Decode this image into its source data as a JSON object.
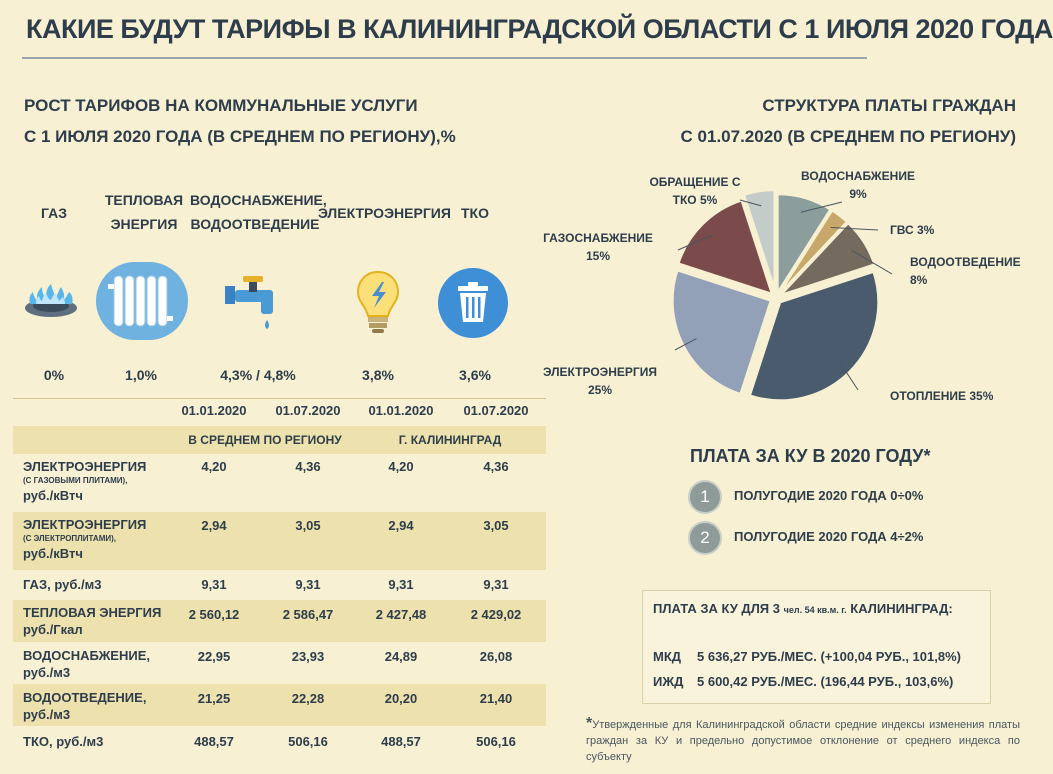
{
  "title": "КАКИЕ БУДУТ ТАРИФЫ В КАЛИНИНГРАДСКОЙ ОБЛАСТИ С 1 ИЮЛЯ 2020 ГОДА",
  "left_heading": {
    "line1": "РОСТ ТАРИФОВ НА КОММУНАЛЬНЫЕ УСЛУГИ",
    "line2": "С 1 ИЮЛЯ 2020 ГОДА (В СРЕДНЕМ ПО РЕГИОНУ),%"
  },
  "right_heading": {
    "line1": "СТРУКТУРА ПЛАТЫ ГРАЖДАН",
    "line2": "С 01.07.2020 (В СРЕДНЕМ ПО РЕГИОНУ)"
  },
  "services": [
    {
      "line1": "ГАЗ",
      "line2": "",
      "value": "0%",
      "icon": "gas-burner-icon"
    },
    {
      "line1": "ТЕПЛОВАЯ",
      "line2": "ЭНЕРГИЯ",
      "value": "1,0%",
      "icon": "radiator-icon"
    },
    {
      "line1": "ВОДОСНАБЖЕНИЕ,",
      "line2": "ВОДООТВЕДЕНИЕ",
      "value": "4,3% / 4,8%",
      "icon": "water-tap-icon"
    },
    {
      "line1": "ЭЛЕКТРОЭНЕРГИЯ",
      "line2": "",
      "value": "3,8%",
      "icon": "light-bulb-icon"
    },
    {
      "line1": "ТКО",
      "line2": "",
      "value": "3,6%",
      "icon": "trash-bin-icon"
    }
  ],
  "table": {
    "dates": [
      "01.01.2020",
      "01.07.2020",
      "01.01.2020",
      "01.07.2020"
    ],
    "groups": [
      "В СРЕДНЕМ ПО РЕГИОНУ",
      "Г. КАЛИНИНГРАД"
    ],
    "rows": [
      {
        "label": "ЭЛЕКТРОЭНЕРГИЯ",
        "note": "(С ГАЗОВЫМИ ПЛИТАМИ),",
        "unit": "руб./кВтч",
        "values": [
          "4,20",
          "4,36",
          "4,20",
          "4,36"
        ]
      },
      {
        "label": "ЭЛЕКТРОЭНЕРГИЯ",
        "note": "(С ЭЛЕКТРОПЛИТАМИ),",
        "unit": "руб./кВтч",
        "values": [
          "2,94",
          "3,05",
          "2,94",
          "3,05"
        ]
      },
      {
        "label": "ГАЗ,",
        "note": "",
        "unit": "руб./м3",
        "values": [
          "9,31",
          "9,31",
          "9,31",
          "9,31"
        ]
      },
      {
        "label": "ТЕПЛОВАЯ ЭНЕРГИЯ",
        "note": "",
        "unit": "руб./Гкал",
        "values": [
          "2 560,12",
          "2 586,47",
          "2 427,48",
          "2 429,02"
        ]
      },
      {
        "label": "ВОДОСНАБЖЕНИЕ,",
        "note": "",
        "unit": "руб./м3",
        "values": [
          "22,95",
          "23,93",
          "24,89",
          "26,08"
        ]
      },
      {
        "label": "ВОДООТВЕДЕНИЕ,",
        "note": "",
        "unit": "руб./м3",
        "values": [
          "21,25",
          "22,28",
          "20,20",
          "21,40"
        ]
      },
      {
        "label": "ТКО,",
        "note": "",
        "unit": "руб./м3",
        "values": [
          "488,57",
          "506,16",
          "488,57",
          "506,16"
        ]
      }
    ]
  },
  "chart_data": {
    "type": "pie",
    "title": "",
    "slices": [
      {
        "label_line1": "ВОДОСНАБЖЕНИЕ",
        "label_line2": "9%",
        "value": 9,
        "color": "#8b9e9c"
      },
      {
        "label_line1": "ГВС 3%",
        "label_line2": "",
        "value": 3,
        "color": "#c8a86a"
      },
      {
        "label_line1": "ВОДООТВЕДЕНИЕ",
        "label_line2": "8%",
        "value": 8,
        "color": "#756a5e"
      },
      {
        "label_line1": "ОТОПЛЕНИЕ 35%",
        "label_line2": "",
        "value": 35,
        "color": "#4a5b6e"
      },
      {
        "label_line1": "ЭЛЕКТРОЭНЕРГИЯ",
        "label_line2": "25%",
        "value": 25,
        "color": "#93a1b8"
      },
      {
        "label_line1": "ГАЗОСНАБЖЕНИЕ",
        "label_line2": "15%",
        "value": 15,
        "color": "#7b4b4b"
      },
      {
        "label_line1": "ОБРАЩЕНИЕ С",
        "label_line2": "ТКО 5%",
        "value": 5,
        "color": "#c3ccc9"
      }
    ]
  },
  "ku": {
    "title": "ПЛАТА ЗА КУ В 2020 ГОДУ*",
    "items": [
      {
        "num": "1",
        "text": "ПОЛУГОДИЕ 2020 ГОДА  0÷0%"
      },
      {
        "num": "2",
        "text": "ПОЛУГОДИЕ 2020 ГОДА  4÷2%"
      }
    ]
  },
  "ku_box": {
    "title_a": "ПЛАТА ЗА КУ ДЛЯ 3",
    "title_b": "чел. 54 кв.м. г.",
    "title_c": "КАЛИНИНГРАД:",
    "rows": [
      {
        "key": "МКД",
        "value": "5 636,27 РУБ./МЕС. (+100,04 РУБ., 101,8%)"
      },
      {
        "key": "ИЖД",
        "value": "5 600,42 РУБ./МЕС. (196,44 РУБ., 103,6%)"
      }
    ]
  },
  "footnote": {
    "star": "*",
    "text": "Утвержденные для Калининградской области средние индексы изменения платы граждан за КУ и предельно допустимое отклонение от среднего индекса по субъекту"
  }
}
